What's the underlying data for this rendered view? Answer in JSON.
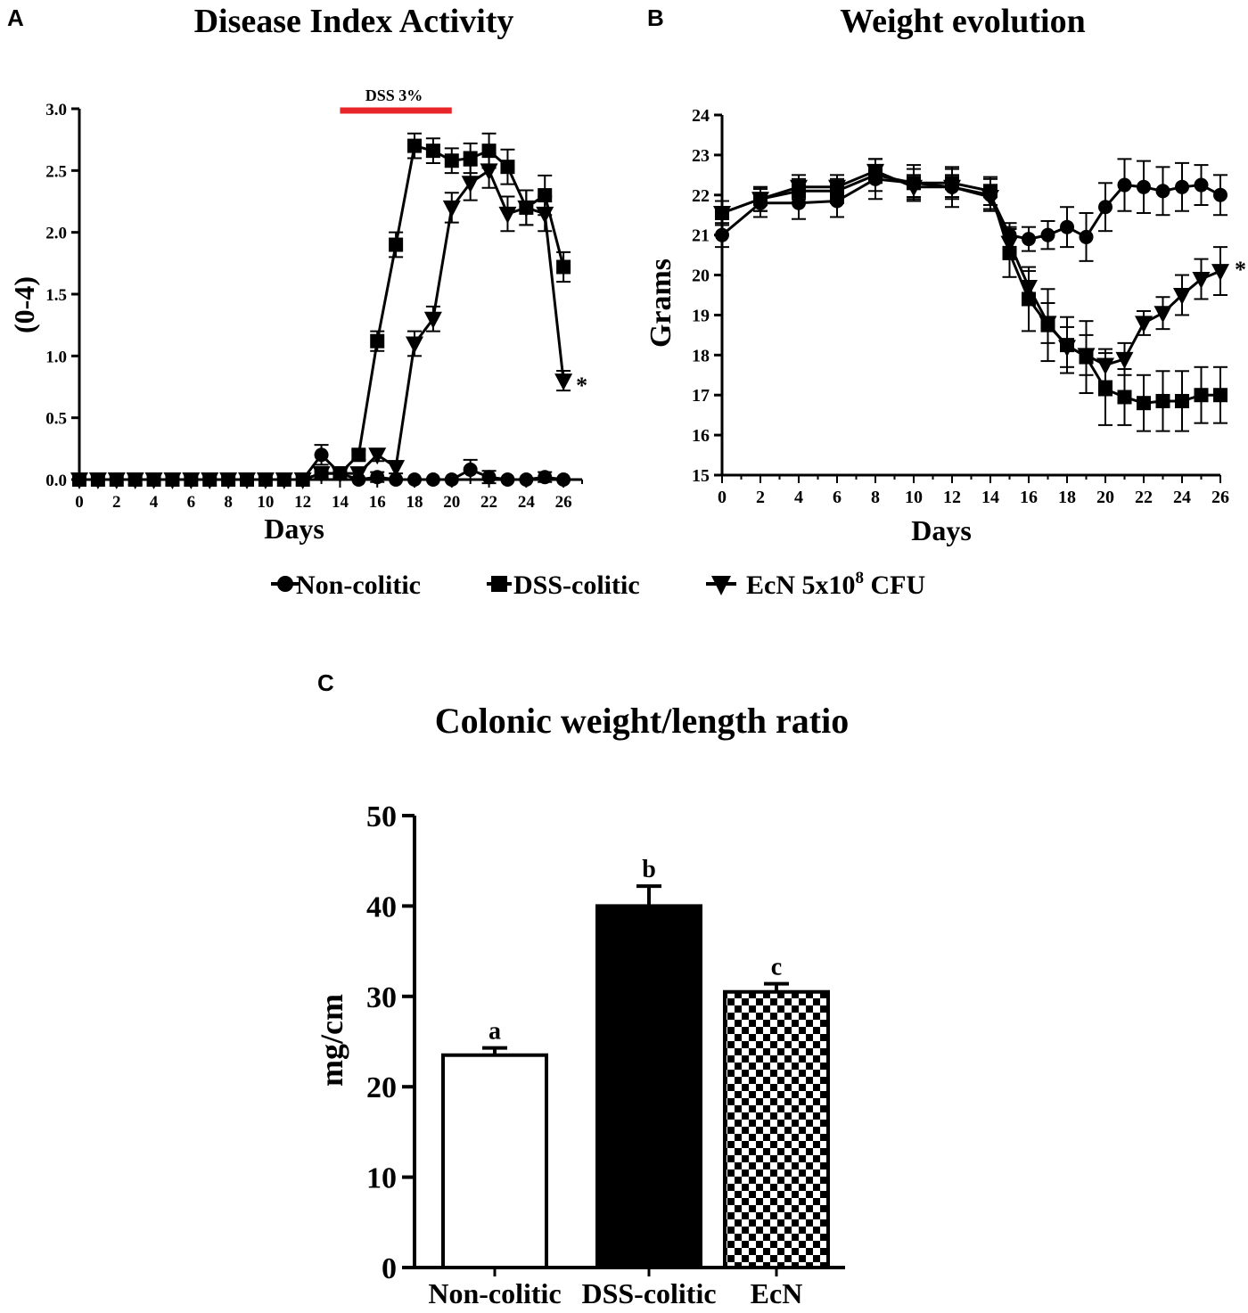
{
  "panels": {
    "a": "A",
    "b": "B",
    "c": "C"
  },
  "legend": {
    "non_colitic": "Non-colitic",
    "dss_colitic": "DSS-colitic",
    "ecn_prefix": "EcN 5x10",
    "ecn_sup": "8",
    "ecn_suffix": " CFU"
  },
  "chart_data": [
    {
      "type": "line",
      "title": "Disease Index Activity",
      "xlabel": "Days",
      "ylabel": "(0-4)",
      "xlim": [
        0,
        27
      ],
      "ylim": [
        0,
        3.0
      ],
      "xticks": [
        0,
        2,
        4,
        6,
        8,
        10,
        12,
        14,
        16,
        18,
        20,
        22,
        24,
        26
      ],
      "yticks": [
        "0.0",
        "0.5",
        "1.0",
        "1.5",
        "2.0",
        "2.5",
        "3.0"
      ],
      "annotation": {
        "label": "DSS 3%",
        "x_start": 14,
        "x_end": 20,
        "color": "#e8262a"
      },
      "significance": {
        "label": "*",
        "series": "EcN 5x10^8 CFU"
      },
      "series": [
        {
          "name": "Non-colitic",
          "marker": "circle",
          "x": [
            0,
            1,
            2,
            3,
            4,
            5,
            6,
            7,
            8,
            9,
            10,
            11,
            12,
            13,
            14,
            15,
            16,
            17,
            18,
            19,
            20,
            21,
            22,
            23,
            24,
            25,
            26
          ],
          "y": [
            0,
            0,
            0,
            0,
            0,
            0,
            0,
            0,
            0,
            0,
            0,
            0,
            0,
            0.2,
            0.05,
            0,
            0.02,
            0,
            0,
            0,
            0,
            0.08,
            0.02,
            0,
            0,
            0.02,
            0
          ],
          "err": [
            0,
            0,
            0,
            0.04,
            0,
            0,
            0,
            0,
            0,
            0,
            0,
            0,
            0,
            0.08,
            0.05,
            0,
            0.04,
            0,
            0,
            0,
            0,
            0.08,
            0.05,
            0,
            0,
            0.04,
            0
          ]
        },
        {
          "name": "DSS-colitic",
          "marker": "square",
          "x": [
            0,
            1,
            2,
            3,
            4,
            5,
            6,
            7,
            8,
            9,
            10,
            11,
            12,
            13,
            14,
            15,
            16,
            17,
            18,
            19,
            20,
            21,
            22,
            23,
            24,
            25,
            26
          ],
          "y": [
            0,
            0,
            0,
            0,
            0,
            0,
            0,
            0,
            0,
            0,
            0,
            0,
            0,
            0.05,
            0.05,
            0.2,
            1.12,
            1.9,
            2.7,
            2.66,
            2.58,
            2.6,
            2.66,
            2.53,
            2.2,
            2.3,
            1.72
          ],
          "err": [
            0,
            0,
            0,
            0,
            0,
            0,
            0,
            0,
            0,
            0,
            0,
            0,
            0,
            0.04,
            0.04,
            0.04,
            0.08,
            0.1,
            0.1,
            0.1,
            0.1,
            0.12,
            0.14,
            0.14,
            0.14,
            0.16,
            0.12
          ]
        },
        {
          "name": "EcN 5x10^8 CFU",
          "marker": "triangle-down",
          "x": [
            0,
            1,
            2,
            3,
            4,
            5,
            6,
            7,
            8,
            9,
            10,
            11,
            12,
            13,
            14,
            15,
            16,
            17,
            18,
            19,
            20,
            21,
            22,
            23,
            24,
            25,
            26
          ],
          "y": [
            0,
            0,
            0,
            0,
            0,
            0,
            0,
            0,
            0,
            0,
            0,
            0,
            0,
            0.05,
            0.05,
            0.05,
            0.2,
            0.1,
            1.1,
            1.3,
            2.2,
            2.4,
            2.5,
            2.15,
            2.2,
            2.15,
            0.8
          ],
          "err": [
            0,
            0,
            0,
            0,
            0,
            0,
            0,
            0,
            0,
            0,
            0,
            0,
            0,
            0.04,
            0.04,
            0.04,
            0.05,
            0.05,
            0.1,
            0.1,
            0.12,
            0.14,
            0.14,
            0.14,
            0.14,
            0.14,
            0.08
          ]
        }
      ]
    },
    {
      "type": "line",
      "title": "Weight evolution",
      "xlabel": "Days",
      "ylabel": "Grams",
      "xlim": [
        0,
        26
      ],
      "ylim": [
        15,
        24
      ],
      "xticks": [
        0,
        2,
        4,
        6,
        8,
        10,
        12,
        14,
        16,
        18,
        20,
        22,
        24,
        26
      ],
      "yticks": [
        "15",
        "16",
        "17",
        "18",
        "19",
        "20",
        "21",
        "22",
        "23",
        "24"
      ],
      "significance": {
        "label": "*",
        "series": "EcN 5x10^8 CFU"
      },
      "series": [
        {
          "name": "Non-colitic",
          "marker": "circle",
          "x": [
            0,
            2,
            4,
            6,
            8,
            10,
            12,
            14,
            15,
            16,
            17,
            18,
            19,
            20,
            21,
            22,
            23,
            24,
            25,
            26
          ],
          "y": [
            21.0,
            21.8,
            21.8,
            21.85,
            22.4,
            22.3,
            22.2,
            22.0,
            21.0,
            20.9,
            21.0,
            21.2,
            20.95,
            21.7,
            22.25,
            22.2,
            22.1,
            22.2,
            22.25,
            22.0
          ],
          "err": [
            0.3,
            0.35,
            0.4,
            0.4,
            0.5,
            0.45,
            0.5,
            0.4,
            0.3,
            0.3,
            0.35,
            0.5,
            0.6,
            0.6,
            0.65,
            0.65,
            0.6,
            0.6,
            0.5,
            0.5
          ]
        },
        {
          "name": "DSS-colitic",
          "marker": "square",
          "x": [
            0,
            2,
            4,
            6,
            8,
            10,
            12,
            14,
            15,
            16,
            17,
            18,
            19,
            20,
            21,
            22,
            23,
            24,
            25,
            26
          ],
          "y": [
            21.55,
            21.9,
            22.1,
            22.1,
            22.5,
            22.3,
            22.3,
            22.1,
            20.55,
            19.4,
            18.75,
            18.25,
            17.95,
            17.15,
            16.95,
            16.8,
            16.85,
            16.85,
            17.0,
            17.0
          ],
          "err": [
            0.3,
            0.3,
            0.3,
            0.3,
            0.4,
            0.35,
            0.35,
            0.35,
            0.6,
            0.8,
            0.9,
            0.7,
            0.9,
            0.9,
            0.7,
            0.7,
            0.75,
            0.75,
            0.7,
            0.7
          ]
        },
        {
          "name": "EcN 5x10^8 CFU",
          "marker": "triangle-down",
          "x": [
            0,
            2,
            4,
            6,
            8,
            10,
            12,
            14,
            15,
            16,
            17,
            18,
            19,
            20,
            21,
            22,
            23,
            24,
            25,
            26
          ],
          "y": [
            21.55,
            21.9,
            22.2,
            22.2,
            22.6,
            22.2,
            22.2,
            21.95,
            20.8,
            19.7,
            18.8,
            18.2,
            18.0,
            17.75,
            17.9,
            18.8,
            19.05,
            19.5,
            19.9,
            20.1
          ],
          "err": [
            0.3,
            0.3,
            0.3,
            0.3,
            0.3,
            0.3,
            0.3,
            0.3,
            0.4,
            0.4,
            0.5,
            0.5,
            0.5,
            0.4,
            0.4,
            0.3,
            0.4,
            0.5,
            0.5,
            0.6
          ]
        }
      ]
    },
    {
      "type": "bar",
      "title": "Colonic weight/length ratio",
      "xlabel": "",
      "ylabel": "mg/cm",
      "ylim": [
        0,
        50
      ],
      "yticks": [
        "0",
        "10",
        "20",
        "30",
        "40",
        "50"
      ],
      "categories": [
        "Non-colitic",
        "DSS-colitic",
        "EcN"
      ],
      "values": [
        23.5,
        40.0,
        30.5
      ],
      "errors": [
        0.8,
        2.2,
        0.9
      ],
      "letters": [
        "a",
        "b",
        "c"
      ],
      "fills": [
        "white",
        "black",
        "checker"
      ]
    }
  ]
}
